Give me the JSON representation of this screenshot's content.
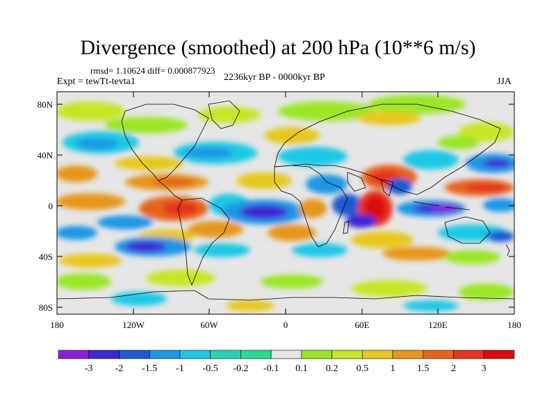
{
  "title": "Divergence (smoothed) at 200 hPa (10**6 m/s)",
  "stats_line": "rmsd= 1.10624 diff= 0.000877923",
  "experiment_label": "Expt = tewTt-tevta1",
  "period_label": "2236kyr BP - 0000kyr BP",
  "season_label": "JJA",
  "axes": {
    "y_ticks": [
      "80N",
      "40N",
      "0",
      "40S",
      "80S"
    ],
    "x_ticks": [
      "180",
      "120W",
      "60W",
      "0",
      "60E",
      "120E",
      "180"
    ]
  },
  "colorbar": {
    "labels": [
      "-3",
      "-2",
      "-1.5",
      "-1",
      "-0.5",
      "-0.2",
      "-0.1",
      "0.1",
      "0.2",
      "0.5",
      "1",
      "1.5",
      "2",
      "3"
    ],
    "colors": [
      "#8a1ee0",
      "#3c28d2",
      "#1e5ad2",
      "#1e96e6",
      "#1ec8e6",
      "#28d2b4",
      "#28dc8c",
      "#e6e6e6",
      "#9be628",
      "#c8e628",
      "#e6c81e",
      "#e6961e",
      "#e6641e",
      "#e6321e",
      "#dc0a0a"
    ]
  },
  "colors": {
    "background_zero": "#e6e6e6",
    "coastline": "#000000"
  }
}
